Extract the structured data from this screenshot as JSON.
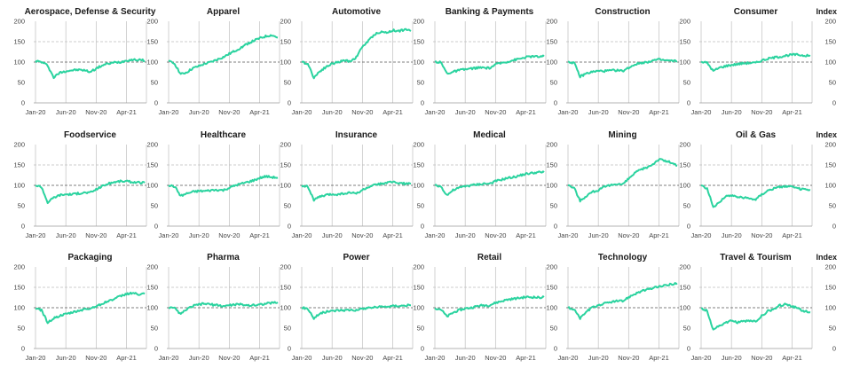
{
  "colors": {
    "series": "#2bd39f",
    "gridline": "#bfbfbf",
    "baseline": "#555555",
    "axis": "#9a9a9a"
  },
  "index_label": "Index",
  "chart_data": [
    {
      "type": "line",
      "title": "Aerospace, Defense & Security",
      "x_ticks": [
        "Jan-20",
        "Jun-20",
        "Nov-20",
        "Apr-21"
      ],
      "y_ticks": [
        0,
        50,
        100,
        150,
        200
      ],
      "ylim": [
        0,
        200
      ],
      "reference_line": 100,
      "x": [
        "Jan-20",
        "Feb-20",
        "Mar-20",
        "Apr-20",
        "May-20",
        "Jun-20",
        "Jul-20",
        "Aug-20",
        "Sep-20",
        "Oct-20",
        "Nov-20",
        "Dec-20",
        "Jan-21",
        "Feb-21",
        "Mar-21",
        "Apr-21",
        "May-21",
        "Jun-21",
        "Jul-21"
      ],
      "series": [
        {
          "values": [
            103,
            100,
            92,
            62,
            74,
            78,
            80,
            81,
            80,
            76,
            84,
            92,
            96,
            99,
            100,
            104,
            106,
            105,
            104
          ]
        }
      ]
    },
    {
      "type": "line",
      "title": "Apparel",
      "x_ticks": [
        "Jan-20",
        "Jun-20",
        "Nov-20",
        "Apr-21"
      ],
      "y_ticks": [
        0,
        50,
        100,
        150,
        200
      ],
      "ylim": [
        0,
        200
      ],
      "reference_line": 100,
      "x": [
        "Jan-20",
        "Feb-20",
        "Mar-20",
        "Apr-20",
        "May-20",
        "Jun-20",
        "Jul-20",
        "Aug-20",
        "Sep-20",
        "Oct-20",
        "Nov-20",
        "Dec-20",
        "Jan-21",
        "Feb-21",
        "Mar-21",
        "Apr-21",
        "May-21",
        "Jun-21",
        "Jul-21"
      ],
      "series": [
        {
          "values": [
            102,
            96,
            70,
            75,
            85,
            90,
            96,
            100,
            106,
            112,
            120,
            128,
            136,
            145,
            152,
            158,
            163,
            166,
            160
          ]
        }
      ]
    },
    {
      "type": "line",
      "title": "Automotive",
      "x_ticks": [
        "Jan-20",
        "Jun-20",
        "Nov-20",
        "Apr-21"
      ],
      "y_ticks": [
        0,
        50,
        100,
        150,
        200
      ],
      "ylim": [
        0,
        200
      ],
      "reference_line": 100,
      "x": [
        "Jan-20",
        "Feb-20",
        "Mar-20",
        "Apr-20",
        "May-20",
        "Jun-20",
        "Jul-20",
        "Aug-20",
        "Sep-20",
        "Oct-20",
        "Nov-20",
        "Dec-20",
        "Jan-21",
        "Feb-21",
        "Mar-21",
        "Apr-21",
        "May-21",
        "Jun-21",
        "Jul-21"
      ],
      "series": [
        {
          "values": [
            100,
            96,
            62,
            78,
            88,
            96,
            100,
            104,
            102,
            112,
            138,
            152,
            168,
            174,
            172,
            178,
            176,
            180,
            176
          ]
        }
      ]
    },
    {
      "type": "line",
      "title": "Banking & Payments",
      "x_ticks": [
        "Jan-20",
        "Jun-20",
        "Nov-20",
        "Apr-21"
      ],
      "y_ticks": [
        0,
        50,
        100,
        150,
        200
      ],
      "ylim": [
        0,
        200
      ],
      "reference_line": 100,
      "x": [
        "Jan-20",
        "Feb-20",
        "Mar-20",
        "Apr-20",
        "May-20",
        "Jun-20",
        "Jul-20",
        "Aug-20",
        "Sep-20",
        "Oct-20",
        "Nov-20",
        "Dec-20",
        "Jan-21",
        "Feb-21",
        "Mar-21",
        "Apr-21",
        "May-21",
        "Jun-21",
        "Jul-21"
      ],
      "series": [
        {
          "values": [
            101,
            99,
            72,
            76,
            80,
            82,
            84,
            86,
            86,
            85,
            94,
            98,
            101,
            105,
            108,
            112,
            114,
            113,
            114
          ]
        }
      ]
    },
    {
      "type": "line",
      "title": "Construction",
      "x_ticks": [
        "Jan-20",
        "Jun-20",
        "Nov-20",
        "Apr-21"
      ],
      "y_ticks": [
        0,
        50,
        100,
        150,
        200
      ],
      "ylim": [
        0,
        200
      ],
      "reference_line": 100,
      "x": [
        "Jan-20",
        "Feb-20",
        "Mar-20",
        "Apr-20",
        "May-20",
        "Jun-20",
        "Jul-20",
        "Aug-20",
        "Sep-20",
        "Oct-20",
        "Nov-20",
        "Dec-20",
        "Jan-21",
        "Feb-21",
        "Mar-21",
        "Apr-21",
        "May-21",
        "Jun-21",
        "Jul-21"
      ],
      "series": [
        {
          "values": [
            101,
            98,
            64,
            72,
            76,
            78,
            78,
            79,
            80,
            78,
            86,
            94,
            98,
            100,
            104,
            106,
            104,
            103,
            102
          ]
        }
      ]
    },
    {
      "type": "line",
      "title": "Consumer",
      "x_ticks": [
        "Jan-20",
        "Jun-20",
        "Nov-20",
        "Apr-21"
      ],
      "y_ticks": [
        0,
        50,
        100,
        150,
        200
      ],
      "ylim": [
        0,
        200
      ],
      "reference_line": 100,
      "x": [
        "Jan-20",
        "Feb-20",
        "Mar-20",
        "Apr-20",
        "May-20",
        "Jun-20",
        "Jul-20",
        "Aug-20",
        "Sep-20",
        "Oct-20",
        "Nov-20",
        "Dec-20",
        "Jan-21",
        "Feb-21",
        "Mar-21",
        "Apr-21",
        "May-21",
        "Jun-21",
        "Jul-21"
      ],
      "series": [
        {
          "values": [
            101,
            98,
            78,
            86,
            90,
            93,
            95,
            97,
            98,
            98,
            104,
            108,
            111,
            113,
            116,
            118,
            118,
            116,
            115
          ]
        }
      ]
    },
    {
      "type": "line",
      "title": "Foodservice",
      "x_ticks": [
        "Jan-20",
        "Jun-20",
        "Nov-20",
        "Apr-21"
      ],
      "y_ticks": [
        0,
        50,
        100,
        150,
        200
      ],
      "ylim": [
        0,
        200
      ],
      "reference_line": 100,
      "x": [
        "Jan-20",
        "Feb-20",
        "Mar-20",
        "Apr-20",
        "May-20",
        "Jun-20",
        "Jul-20",
        "Aug-20",
        "Sep-20",
        "Oct-20",
        "Nov-20",
        "Dec-20",
        "Jan-21",
        "Feb-21",
        "Mar-21",
        "Apr-21",
        "May-21",
        "Jun-21",
        "Jul-21"
      ],
      "series": [
        {
          "values": [
            100,
            96,
            58,
            70,
            76,
            78,
            78,
            80,
            82,
            82,
            90,
            98,
            104,
            108,
            110,
            110,
            108,
            107,
            106
          ]
        }
      ]
    },
    {
      "type": "line",
      "title": "Healthcare",
      "x_ticks": [
        "Jan-20",
        "Jun-20",
        "Nov-20",
        "Apr-21"
      ],
      "y_ticks": [
        0,
        50,
        100,
        150,
        200
      ],
      "ylim": [
        0,
        200
      ],
      "reference_line": 100,
      "x": [
        "Jan-20",
        "Feb-20",
        "Mar-20",
        "Apr-20",
        "May-20",
        "Jun-20",
        "Jul-20",
        "Aug-20",
        "Sep-20",
        "Oct-20",
        "Nov-20",
        "Dec-20",
        "Jan-21",
        "Feb-21",
        "Mar-21",
        "Apr-21",
        "May-21",
        "Jun-21",
        "Jul-21"
      ],
      "series": [
        {
          "values": [
            100,
            97,
            74,
            80,
            84,
            86,
            86,
            88,
            89,
            88,
            94,
            100,
            104,
            108,
            112,
            118,
            122,
            120,
            119
          ]
        }
      ]
    },
    {
      "type": "line",
      "title": "Insurance",
      "x_ticks": [
        "Jan-20",
        "Jun-20",
        "Nov-20",
        "Apr-21"
      ],
      "y_ticks": [
        0,
        50,
        100,
        150,
        200
      ],
      "ylim": [
        0,
        200
      ],
      "reference_line": 100,
      "x": [
        "Jan-20",
        "Feb-20",
        "Mar-20",
        "Apr-20",
        "May-20",
        "Jun-20",
        "Jul-20",
        "Aug-20",
        "Sep-20",
        "Oct-20",
        "Nov-20",
        "Dec-20",
        "Jan-21",
        "Feb-21",
        "Mar-21",
        "Apr-21",
        "May-21",
        "Jun-21",
        "Jul-21"
      ],
      "series": [
        {
          "values": [
            100,
            97,
            64,
            72,
            76,
            78,
            78,
            80,
            82,
            80,
            88,
            96,
            100,
            104,
            106,
            108,
            106,
            104,
            104
          ]
        }
      ]
    },
    {
      "type": "line",
      "title": "Medical",
      "x_ticks": [
        "Jan-20",
        "Jun-20",
        "Nov-20",
        "Apr-21"
      ],
      "y_ticks": [
        0,
        50,
        100,
        150,
        200
      ],
      "ylim": [
        0,
        200
      ],
      "reference_line": 100,
      "x": [
        "Jan-20",
        "Feb-20",
        "Mar-20",
        "Apr-20",
        "May-20",
        "Jun-20",
        "Jul-20",
        "Aug-20",
        "Sep-20",
        "Oct-20",
        "Nov-20",
        "Dec-20",
        "Jan-21",
        "Feb-21",
        "Mar-21",
        "Apr-21",
        "May-21",
        "Jun-21",
        "Jul-21"
      ],
      "series": [
        {
          "values": [
            100,
            97,
            76,
            88,
            94,
            98,
            100,
            102,
            104,
            104,
            110,
            114,
            118,
            120,
            124,
            128,
            130,
            132,
            132
          ]
        }
      ]
    },
    {
      "type": "line",
      "title": "Mining",
      "x_ticks": [
        "Jan-20",
        "Jun-20",
        "Nov-20",
        "Apr-21"
      ],
      "y_ticks": [
        0,
        50,
        100,
        150,
        200
      ],
      "ylim": [
        0,
        200
      ],
      "reference_line": 100,
      "x": [
        "Jan-20",
        "Feb-20",
        "Mar-20",
        "Apr-20",
        "May-20",
        "Jun-20",
        "Jul-20",
        "Aug-20",
        "Sep-20",
        "Oct-20",
        "Nov-20",
        "Dec-20",
        "Jan-21",
        "Feb-21",
        "Mar-21",
        "Apr-21",
        "May-21",
        "Jun-21",
        "Jul-21"
      ],
      "series": [
        {
          "values": [
            100,
            94,
            62,
            74,
            84,
            88,
            96,
            100,
            104,
            102,
            116,
            130,
            138,
            144,
            152,
            164,
            160,
            156,
            148
          ]
        }
      ]
    },
    {
      "type": "line",
      "title": "Oil & Gas",
      "x_ticks": [
        "Jan-20",
        "Jun-20",
        "Nov-20",
        "Apr-21"
      ],
      "y_ticks": [
        0,
        50,
        100,
        150,
        200
      ],
      "ylim": [
        0,
        200
      ],
      "reference_line": 100,
      "x": [
        "Jan-20",
        "Feb-20",
        "Mar-20",
        "Apr-20",
        "May-20",
        "Jun-20",
        "Jul-20",
        "Aug-20",
        "Sep-20",
        "Oct-20",
        "Nov-20",
        "Dec-20",
        "Jan-21",
        "Feb-21",
        "Mar-21",
        "Apr-21",
        "May-21",
        "Jun-21",
        "Jul-21"
      ],
      "series": [
        {
          "values": [
            100,
            92,
            46,
            60,
            72,
            76,
            72,
            70,
            68,
            66,
            78,
            88,
            92,
            96,
            98,
            96,
            92,
            90,
            88
          ]
        }
      ]
    },
    {
      "type": "line",
      "title": "Packaging",
      "x_ticks": [
        "Jan-20",
        "Jun-20",
        "Nov-20",
        "Apr-21"
      ],
      "y_ticks": [
        0,
        50,
        100,
        150,
        200
      ],
      "ylim": [
        0,
        200
      ],
      "reference_line": 100,
      "x": [
        "Jan-20",
        "Feb-20",
        "Mar-20",
        "Apr-20",
        "May-20",
        "Jun-20",
        "Jul-20",
        "Aug-20",
        "Sep-20",
        "Oct-20",
        "Nov-20",
        "Dec-20",
        "Jan-21",
        "Feb-21",
        "Mar-21",
        "Apr-21",
        "May-21",
        "Jun-21",
        "Jul-21"
      ],
      "series": [
        {
          "values": [
            98,
            94,
            64,
            74,
            80,
            84,
            88,
            92,
            96,
            98,
            104,
            110,
            116,
            122,
            128,
            134,
            136,
            132,
            134
          ]
        }
      ]
    },
    {
      "type": "line",
      "title": "Pharma",
      "x_ticks": [
        "Jan-20",
        "Jun-20",
        "Nov-20",
        "Apr-21"
      ],
      "y_ticks": [
        0,
        50,
        100,
        150,
        200
      ],
      "ylim": [
        0,
        200
      ],
      "reference_line": 100,
      "x": [
        "Jan-20",
        "Feb-20",
        "Mar-20",
        "Apr-20",
        "May-20",
        "Jun-20",
        "Jul-20",
        "Aug-20",
        "Sep-20",
        "Oct-20",
        "Nov-20",
        "Dec-20",
        "Jan-21",
        "Feb-21",
        "Mar-21",
        "Apr-21",
        "May-21",
        "Jun-21",
        "Jul-21"
      ],
      "series": [
        {
          "values": [
            100,
            98,
            84,
            96,
            104,
            108,
            110,
            108,
            106,
            104,
            106,
            108,
            108,
            106,
            106,
            108,
            110,
            112,
            113
          ]
        }
      ]
    },
    {
      "type": "line",
      "title": "Power",
      "x_ticks": [
        "Jan-20",
        "Jun-20",
        "Nov-20",
        "Apr-21"
      ],
      "y_ticks": [
        0,
        50,
        100,
        150,
        200
      ],
      "ylim": [
        0,
        200
      ],
      "reference_line": 100,
      "x": [
        "Jan-20",
        "Feb-20",
        "Mar-20",
        "Apr-20",
        "May-20",
        "Jun-20",
        "Jul-20",
        "Aug-20",
        "Sep-20",
        "Oct-20",
        "Nov-20",
        "Dec-20",
        "Jan-21",
        "Feb-21",
        "Mar-21",
        "Apr-21",
        "May-21",
        "Jun-21",
        "Jul-21"
      ],
      "series": [
        {
          "values": [
            100,
            98,
            74,
            86,
            90,
            92,
            94,
            94,
            95,
            94,
            97,
            100,
            101,
            102,
            103,
            104,
            105,
            105,
            106
          ]
        }
      ]
    },
    {
      "type": "line",
      "title": "Retail",
      "x_ticks": [
        "Jan-20",
        "Jun-20",
        "Nov-20",
        "Apr-21"
      ],
      "y_ticks": [
        0,
        50,
        100,
        150,
        200
      ],
      "ylim": [
        0,
        200
      ],
      "reference_line": 100,
      "x": [
        "Jan-20",
        "Feb-20",
        "Mar-20",
        "Apr-20",
        "May-20",
        "Jun-20",
        "Jul-20",
        "Aug-20",
        "Sep-20",
        "Oct-20",
        "Nov-20",
        "Dec-20",
        "Jan-21",
        "Feb-21",
        "Mar-21",
        "Apr-21",
        "May-21",
        "Jun-21",
        "Jul-21"
      ],
      "series": [
        {
          "values": [
            99,
            96,
            78,
            88,
            94,
            98,
            100,
            104,
            106,
            106,
            112,
            116,
            120,
            122,
            124,
            126,
            126,
            125,
            126
          ]
        }
      ]
    },
    {
      "type": "line",
      "title": "Technology",
      "x_ticks": [
        "Jan-20",
        "Jun-20",
        "Nov-20",
        "Apr-21"
      ],
      "y_ticks": [
        0,
        50,
        100,
        150,
        200
      ],
      "ylim": [
        0,
        200
      ],
      "reference_line": 100,
      "x": [
        "Jan-20",
        "Feb-20",
        "Mar-20",
        "Apr-20",
        "May-20",
        "Jun-20",
        "Jul-20",
        "Aug-20",
        "Sep-20",
        "Oct-20",
        "Nov-20",
        "Dec-20",
        "Jan-21",
        "Feb-21",
        "Mar-21",
        "Apr-21",
        "May-21",
        "Jun-21",
        "Jul-21"
      ],
      "series": [
        {
          "values": [
            100,
            96,
            74,
            90,
            100,
            106,
            110,
            114,
            116,
            116,
            126,
            134,
            140,
            144,
            148,
            152,
            154,
            158,
            160
          ]
        }
      ]
    },
    {
      "type": "line",
      "title": "Travel & Tourism",
      "x_ticks": [
        "Jan-20",
        "Jun-20",
        "Nov-20",
        "Apr-21"
      ],
      "y_ticks": [
        0,
        50,
        100,
        150,
        200
      ],
      "ylim": [
        0,
        200
      ],
      "reference_line": 100,
      "x": [
        "Jan-20",
        "Feb-20",
        "Mar-20",
        "Apr-20",
        "May-20",
        "Jun-20",
        "Jul-20",
        "Aug-20",
        "Sep-20",
        "Oct-20",
        "Nov-20",
        "Dec-20",
        "Jan-21",
        "Feb-21",
        "Mar-21",
        "Apr-21",
        "May-21",
        "Jun-21",
        "Jul-21"
      ],
      "series": [
        {
          "values": [
            98,
            92,
            46,
            56,
            62,
            68,
            64,
            66,
            68,
            66,
            80,
            92,
            96,
            106,
            108,
            104,
            98,
            92,
            88
          ]
        }
      ]
    }
  ]
}
